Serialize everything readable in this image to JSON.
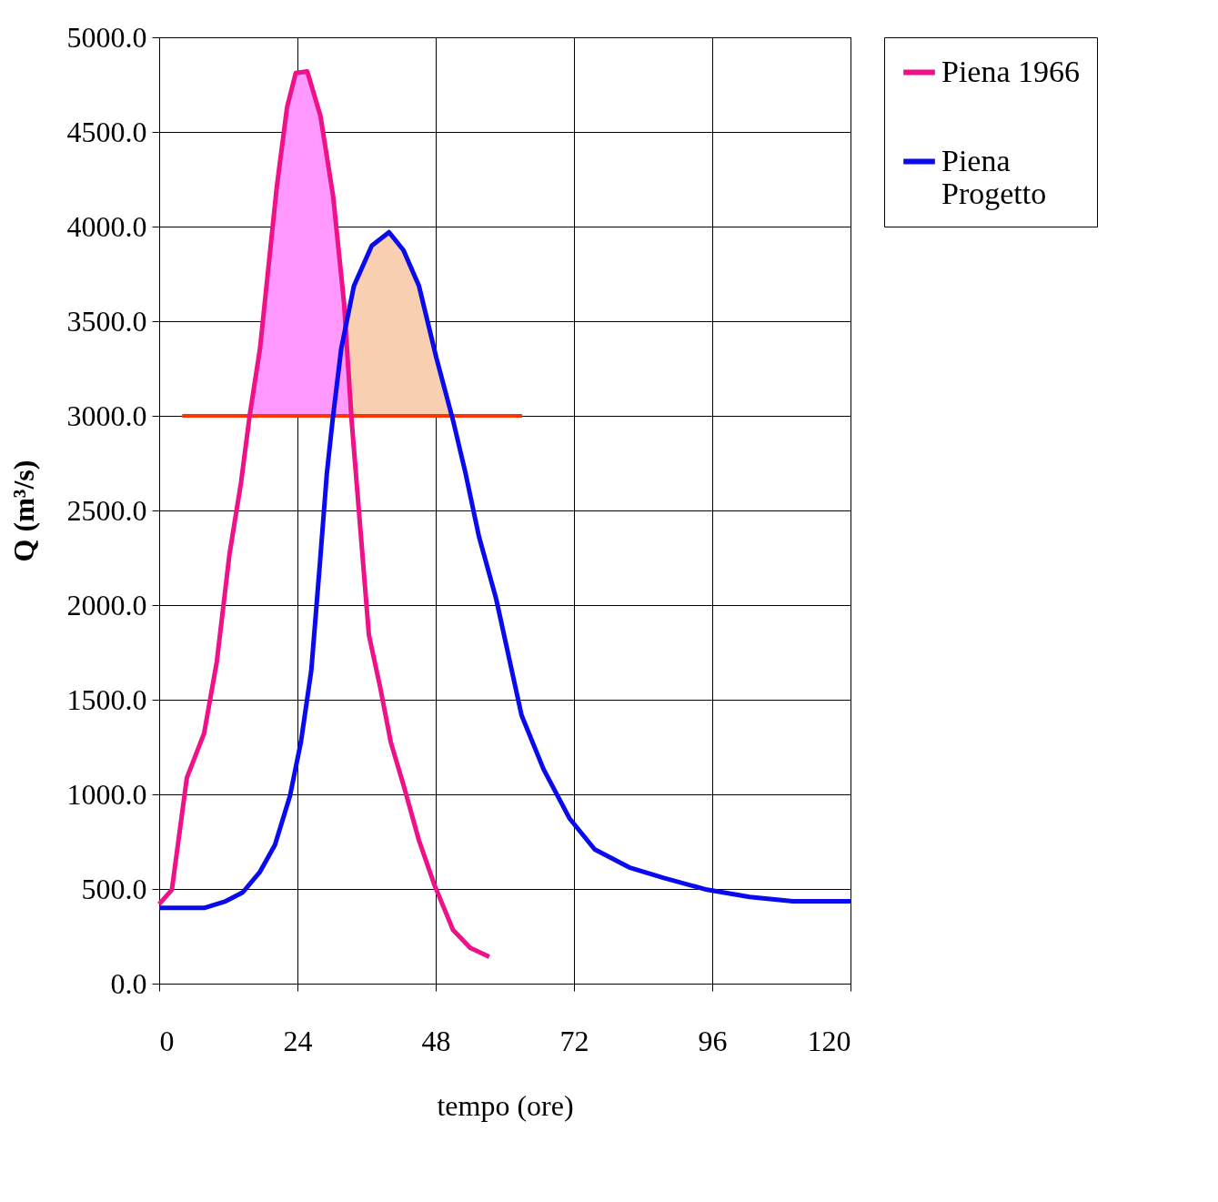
{
  "chart_data": {
    "type": "line",
    "xlabel": "tempo (ore)",
    "ylabel": "Q (m³/s)",
    "xlim": [
      0,
      120
    ],
    "xticks": [
      0,
      24,
      48,
      72,
      96,
      120
    ],
    "ylim": [
      0,
      5000
    ],
    "yticks": [
      {
        "value": 0,
        "label": "0.0"
      },
      {
        "value": 500,
        "label": "500.0"
      },
      {
        "value": 1000,
        "label": "1000.0"
      },
      {
        "value": 1500,
        "label": "1500.0"
      },
      {
        "value": 2000,
        "label": "2000.0"
      },
      {
        "value": 2500,
        "label": "2500.0"
      },
      {
        "value": 3000,
        "label": "3000.0"
      },
      {
        "value": 3500,
        "label": "3500.0"
      },
      {
        "value": 4000,
        "label": "4000.0"
      },
      {
        "value": 4500,
        "label": "4500.0"
      },
      {
        "value": 5000,
        "label": "5000.0"
      }
    ],
    "grid": true,
    "legend": "right",
    "marker": "none",
    "line_style": "solid",
    "series": [
      {
        "type": "area",
        "color": "#f8cfb0",
        "x": [
          32.4,
          33.8,
          36.9,
          39.9,
          42.4,
          45.1,
          48.1,
          51,
          33.4
        ],
        "values": [
          3475,
          3686,
          3899,
          3970,
          3875,
          3686,
          3308,
          3000,
          3000
        ]
      },
      {
        "type": "area",
        "color": "#ff99ff",
        "x": [
          15.7,
          17.5,
          20.4,
          22.2,
          23.7,
          25.7,
          28,
          30.2,
          32.1,
          33.4
        ],
        "values": [
          3000,
          3355,
          4206,
          4631,
          4811,
          4820,
          4584,
          4159,
          3592,
          3000
        ]
      },
      {
        "type": "line",
        "color": "#ff3300",
        "x": [
          4,
          63
        ],
        "values": [
          3000,
          3000
        ]
      },
      {
        "name": "Piena 1966",
        "color": "#ee1188",
        "x": [
          0,
          2.2,
          4.8,
          7.8,
          10,
          12.2,
          14.2,
          15.7,
          17.5,
          20.4,
          22.2,
          23.7,
          25.7,
          28,
          30.2,
          32.1,
          33.4,
          34.9,
          36.4,
          38.4,
          40.2,
          42.5,
          45.1,
          47.8,
          51,
          54,
          57.3
        ],
        "values": [
          420,
          496,
          1087,
          1323,
          1700,
          2268,
          2646,
          3000,
          3355,
          4206,
          4631,
          4811,
          4820,
          4584,
          4159,
          3592,
          2977,
          2410,
          1843,
          1560,
          1276,
          1040,
          756,
          520,
          284,
          189,
          142
        ]
      },
      {
        "name": "Piena Progetto",
        "color": "#0a0aee",
        "x": [
          0,
          7.8,
          11.5,
          14.5,
          17.5,
          20.1,
          22.7,
          24.6,
          26.4,
          27.9,
          29.1,
          30.1,
          31.6,
          33.8,
          36.9,
          39.9,
          42.4,
          45.1,
          48.1,
          51,
          53.2,
          55.5,
          58.5,
          62.9,
          66.7,
          71.2,
          75.6,
          81.6,
          87.6,
          95.1,
          102.5,
          110,
          120
        ],
        "values": [
          400,
          400,
          435,
          482,
          591,
          733,
          992,
          1276,
          1654,
          2221,
          2694,
          2977,
          3355,
          3686,
          3899,
          3970,
          3875,
          3686,
          3308,
          2977,
          2694,
          2363,
          2032,
          1418,
          1134,
          874,
          709,
          614,
          558,
          496,
          458,
          435,
          435
        ]
      }
    ]
  }
}
